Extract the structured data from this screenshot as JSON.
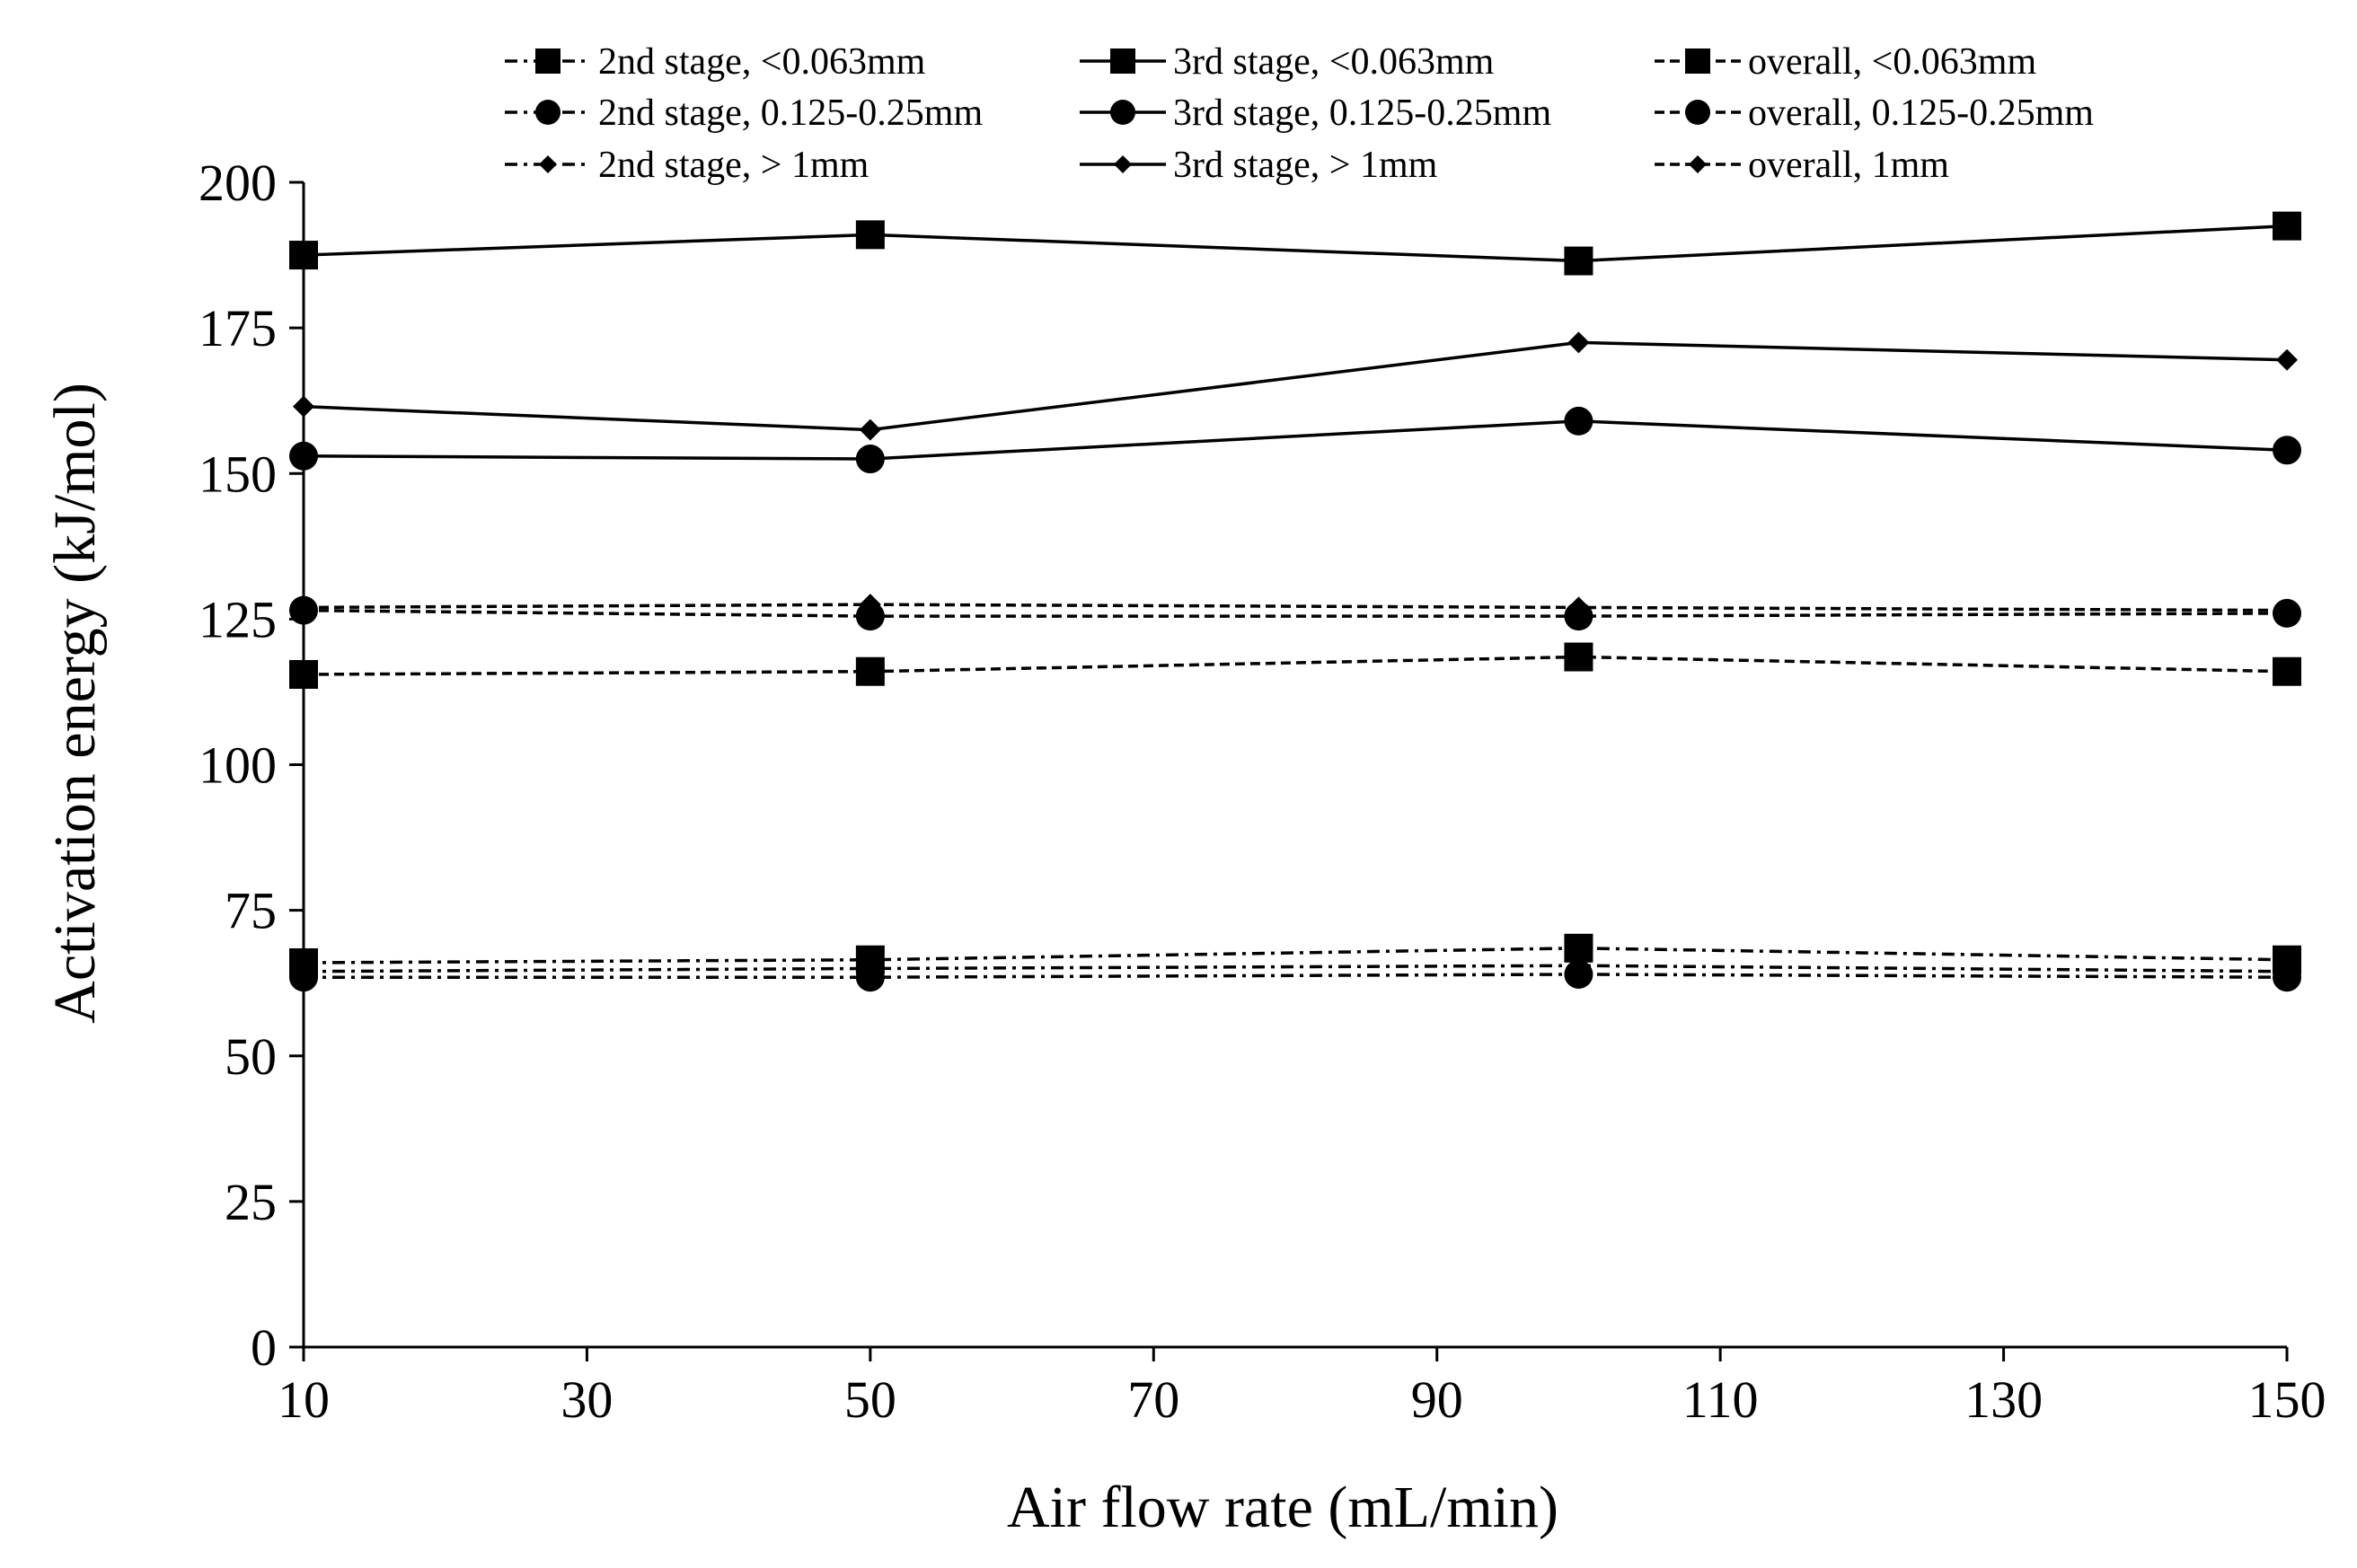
{
  "chart_data": {
    "type": "line",
    "title": "",
    "xlabel": "Air flow rate (mL/min)",
    "ylabel": "Activation energy (kJ/mol)",
    "xlim": [
      10,
      150
    ],
    "ylim": [
      0,
      200
    ],
    "xticks": [
      10,
      30,
      50,
      70,
      90,
      110,
      130,
      150
    ],
    "yticks": [
      0,
      25,
      50,
      75,
      100,
      125,
      150,
      175,
      200
    ],
    "grid": false,
    "legend_position": "top",
    "x": [
      10,
      50,
      100,
      150
    ],
    "series": [
      {
        "name": "2nd stage, <0.063mm",
        "stage": "2nd",
        "marker": "square",
        "values": [
          66,
          66.5,
          68.5,
          66.5
        ]
      },
      {
        "name": "3rd stage, <0.063mm",
        "stage": "3rd",
        "marker": "square",
        "values": [
          187.5,
          191,
          186.5,
          192.5
        ]
      },
      {
        "name": "overall, <0.063mm",
        "stage": "overall",
        "marker": "square",
        "values": [
          115.5,
          116,
          118.5,
          116
        ]
      },
      {
        "name": "2nd stage, 0.125-0.25mm",
        "stage": "2nd",
        "marker": "circle",
        "values": [
          63.5,
          63.5,
          64,
          63.5
        ]
      },
      {
        "name": "3rd stage, 0.125-0.25mm",
        "stage": "3rd",
        "marker": "circle",
        "values": [
          153,
          152.5,
          159,
          154
        ]
      },
      {
        "name": "overall, 0.125-0.25mm",
        "stage": "overall",
        "marker": "circle",
        "values": [
          126.5,
          125.5,
          125.5,
          126
        ]
      },
      {
        "name": "2nd stage, > 1mm",
        "stage": "2nd",
        "marker": "diamond",
        "values": [
          64.5,
          65,
          65.5,
          64.5
        ]
      },
      {
        "name": "3rd stage, > 1mm",
        "stage": "3rd",
        "marker": "diamond",
        "values": [
          161.5,
          157.5,
          172.5,
          169.5
        ]
      },
      {
        "name": "overall, 1mm",
        "stage": "overall",
        "marker": "diamond",
        "values": [
          127,
          127.5,
          127,
          126.5
        ]
      }
    ]
  }
}
